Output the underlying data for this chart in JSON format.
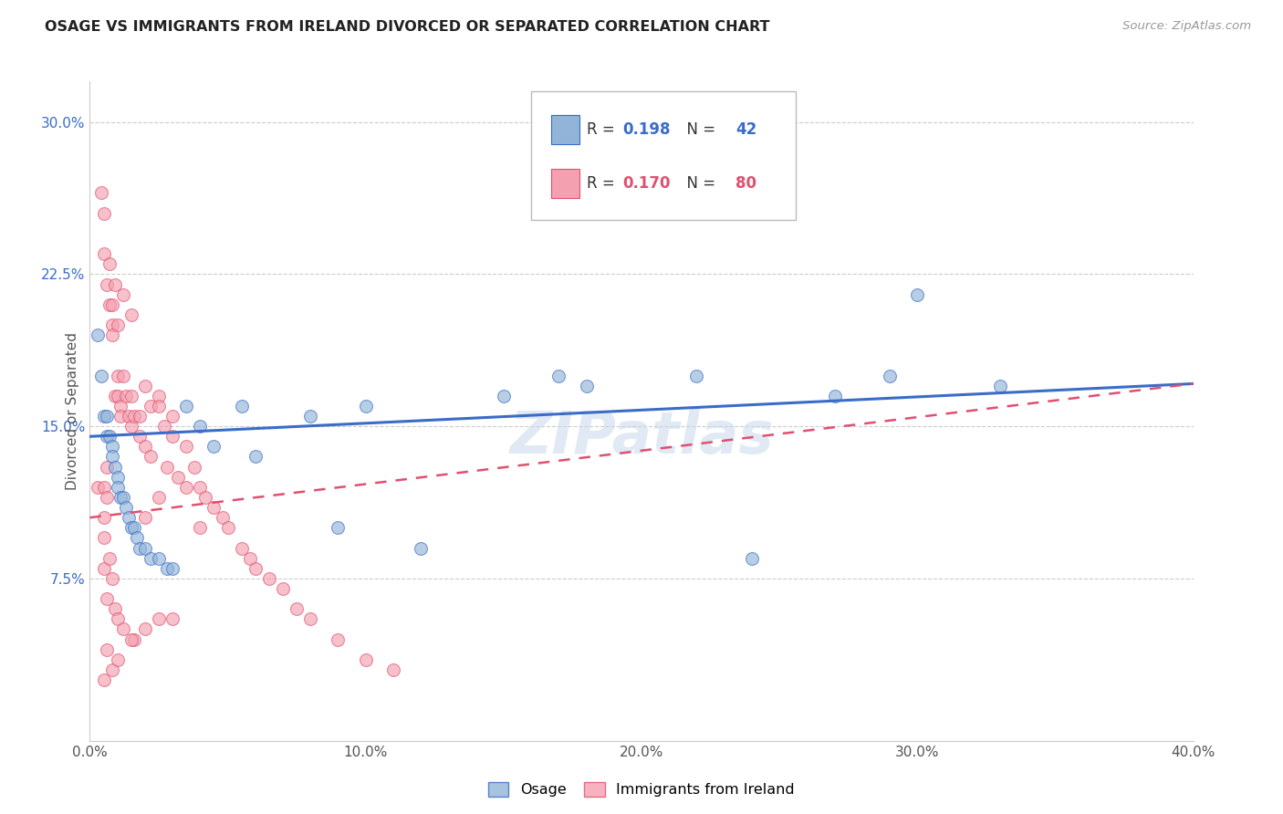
{
  "title": "OSAGE VS IMMIGRANTS FROM IRELAND DIVORCED OR SEPARATED CORRELATION CHART",
  "source": "Source: ZipAtlas.com",
  "ylabel": "Divorced or Separated",
  "legend_label1": "Osage",
  "legend_label2": "Immigrants from Ireland",
  "R1": "0.198",
  "N1": "42",
  "R2": "0.170",
  "N2": "80",
  "color_blue": "#92B4D8",
  "color_pink": "#F4A0B0",
  "line_blue": "#3A6CC8",
  "line_pink": "#E05070",
  "watermark": "ZIPatlas",
  "xlim": [
    0.0,
    0.4
  ],
  "ylim": [
    -0.005,
    0.32
  ],
  "yticks": [
    0.075,
    0.15,
    0.225,
    0.3
  ],
  "ytick_labels": [
    "7.5%",
    "15.0%",
    "22.5%",
    "30.0%"
  ],
  "xticks": [
    0.0,
    0.1,
    0.2,
    0.3,
    0.4
  ],
  "xtick_labels": [
    "0.0%",
    "10.0%",
    "20.0%",
    "30.0%",
    "40.0%"
  ],
  "osage_x": [
    0.003,
    0.004,
    0.005,
    0.006,
    0.006,
    0.007,
    0.008,
    0.008,
    0.009,
    0.01,
    0.01,
    0.011,
    0.012,
    0.013,
    0.014,
    0.015,
    0.016,
    0.017,
    0.018,
    0.02,
    0.022,
    0.025,
    0.028,
    0.03,
    0.035,
    0.04,
    0.045,
    0.055,
    0.06,
    0.08,
    0.09,
    0.1,
    0.12,
    0.15,
    0.17,
    0.18,
    0.22,
    0.24,
    0.27,
    0.29,
    0.3,
    0.33
  ],
  "osage_y": [
    0.195,
    0.175,
    0.155,
    0.155,
    0.145,
    0.145,
    0.14,
    0.135,
    0.13,
    0.125,
    0.12,
    0.115,
    0.115,
    0.11,
    0.105,
    0.1,
    0.1,
    0.095,
    0.09,
    0.09,
    0.085,
    0.085,
    0.08,
    0.08,
    0.16,
    0.15,
    0.14,
    0.16,
    0.135,
    0.155,
    0.1,
    0.16,
    0.09,
    0.165,
    0.175,
    0.17,
    0.175,
    0.085,
    0.165,
    0.175,
    0.215,
    0.17
  ],
  "ireland_x": [
    0.003,
    0.004,
    0.005,
    0.005,
    0.005,
    0.005,
    0.005,
    0.006,
    0.006,
    0.006,
    0.007,
    0.007,
    0.008,
    0.008,
    0.008,
    0.009,
    0.009,
    0.01,
    0.01,
    0.01,
    0.011,
    0.011,
    0.012,
    0.012,
    0.013,
    0.014,
    0.015,
    0.015,
    0.016,
    0.016,
    0.018,
    0.018,
    0.02,
    0.02,
    0.022,
    0.022,
    0.025,
    0.025,
    0.027,
    0.028,
    0.03,
    0.03,
    0.032,
    0.035,
    0.038,
    0.04,
    0.042,
    0.045,
    0.048,
    0.05,
    0.055,
    0.058,
    0.06,
    0.065,
    0.07,
    0.075,
    0.08,
    0.09,
    0.1,
    0.11,
    0.005,
    0.006,
    0.007,
    0.008,
    0.009,
    0.01,
    0.012,
    0.015,
    0.02,
    0.025,
    0.005,
    0.006,
    0.008,
    0.01,
    0.015,
    0.02,
    0.025,
    0.03,
    0.035,
    0.04
  ],
  "ireland_y": [
    0.12,
    0.265,
    0.255,
    0.12,
    0.105,
    0.095,
    0.08,
    0.13,
    0.115,
    0.065,
    0.21,
    0.085,
    0.2,
    0.195,
    0.075,
    0.165,
    0.06,
    0.175,
    0.165,
    0.055,
    0.16,
    0.155,
    0.175,
    0.05,
    0.165,
    0.155,
    0.165,
    0.15,
    0.155,
    0.045,
    0.155,
    0.145,
    0.17,
    0.14,
    0.16,
    0.135,
    0.165,
    0.16,
    0.15,
    0.13,
    0.155,
    0.145,
    0.125,
    0.14,
    0.13,
    0.12,
    0.115,
    0.11,
    0.105,
    0.1,
    0.09,
    0.085,
    0.08,
    0.075,
    0.07,
    0.06,
    0.055,
    0.045,
    0.035,
    0.03,
    0.235,
    0.22,
    0.23,
    0.21,
    0.22,
    0.2,
    0.215,
    0.205,
    0.105,
    0.115,
    0.025,
    0.04,
    0.03,
    0.035,
    0.045,
    0.05,
    0.055,
    0.055,
    0.12,
    0.1
  ]
}
